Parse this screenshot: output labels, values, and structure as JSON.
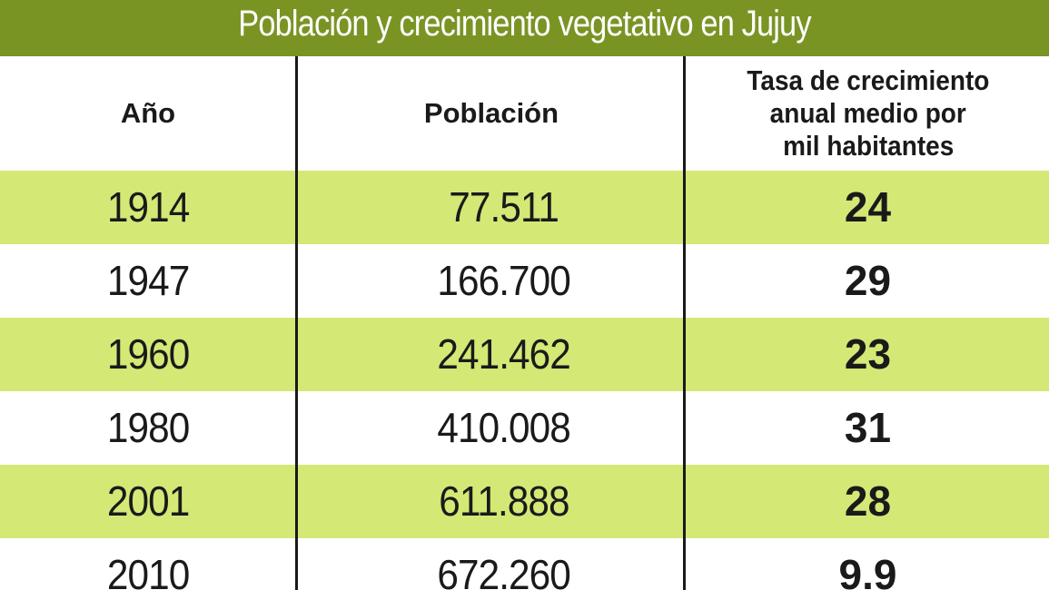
{
  "chart_data": {
    "type": "table",
    "title": "Población y crecimiento vegetativo en Jujuy",
    "columns": [
      "Año",
      "Población",
      "Tasa de crecimiento anual medio por mil habitantes"
    ],
    "column_lines": [
      [
        "Año"
      ],
      [
        "Población"
      ],
      [
        "Tasa de crecimiento",
        "anual medio por",
        "mil habitantes"
      ]
    ],
    "rows": [
      {
        "year": "1914",
        "population": "77.511",
        "rate": "24"
      },
      {
        "year": "1947",
        "population": "166.700",
        "rate": "29"
      },
      {
        "year": "1960",
        "population": "241.462",
        "rate": "23"
      },
      {
        "year": "1980",
        "population": "410.008",
        "rate": "31"
      },
      {
        "year": "2001",
        "population": "611.888",
        "rate": "28"
      },
      {
        "year": "2010",
        "population": "672.260",
        "rate": "9.9"
      }
    ]
  },
  "colors": {
    "title_bar": "#7a9424",
    "title_text": "#ffffff",
    "shaded_row": "#d4e876",
    "plain_row": "#ffffff",
    "rule": "#1a1a1a"
  }
}
